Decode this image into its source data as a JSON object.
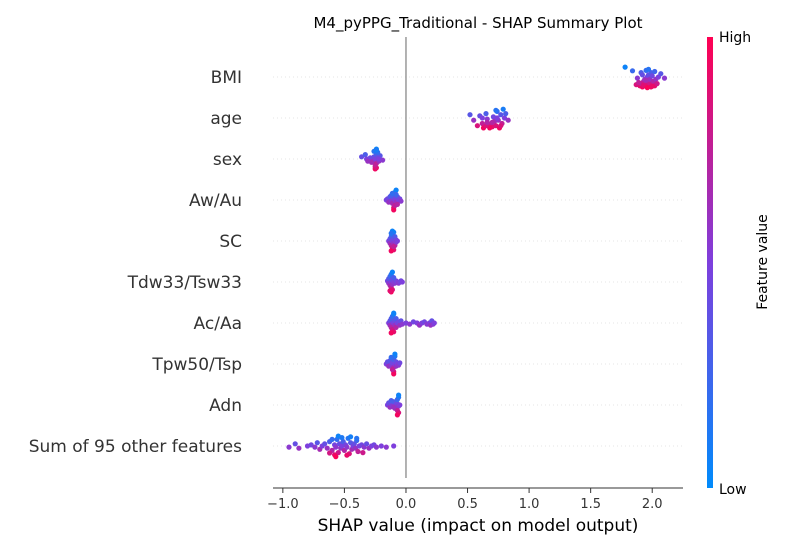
{
  "chart_data": {
    "type": "scatter",
    "subtype": "shap-beeswarm",
    "title": "M4_pyPPG_Traditional - SHAP Summary Plot",
    "xlabel": "SHAP value (impact on model output)",
    "xlim": [
      -1.08,
      2.25
    ],
    "xticks": [
      -1.0,
      -0.5,
      0.0,
      0.5,
      1.0,
      1.5,
      2.0
    ],
    "xtick_labels": [
      "−1.0",
      "−0.5",
      "0.0",
      "0.5",
      "1.0",
      "1.5",
      "2.0"
    ],
    "colorbar": {
      "label": "Feature value",
      "high_label": "High",
      "low_label": "Low",
      "high_color": "#ff0052",
      "low_color": "#008bfb"
    },
    "features": [
      {
        "name": "BMI",
        "points": [
          [
            1.78,
            0.05
          ],
          [
            1.84,
            0.22
          ],
          [
            1.87,
            0.85
          ],
          [
            1.88,
            0.55
          ],
          [
            1.9,
            0.9
          ],
          [
            1.91,
            0.3
          ],
          [
            1.92,
            0.95
          ],
          [
            1.93,
            0.7
          ],
          [
            1.94,
            0.6
          ],
          [
            1.94,
            0.9
          ],
          [
            1.95,
            0.2
          ],
          [
            1.95,
            0.75
          ],
          [
            1.96,
            0.85
          ],
          [
            1.96,
            0.5
          ],
          [
            1.97,
            0.9
          ],
          [
            1.97,
            0.4
          ],
          [
            1.98,
            0.8
          ],
          [
            1.98,
            0.6
          ],
          [
            1.99,
            0.95
          ],
          [
            1.99,
            0.3
          ],
          [
            2.0,
            0.85
          ],
          [
            2.0,
            0.45
          ],
          [
            2.01,
            0.7
          ],
          [
            2.02,
            0.9
          ],
          [
            2.03,
            0.6
          ],
          [
            2.05,
            0.5
          ],
          [
            2.07,
            0.35
          ],
          [
            2.1,
            0.55
          ],
          [
            1.91,
            0.8
          ],
          [
            1.93,
            0.88
          ],
          [
            1.96,
            0.98
          ],
          [
            2.0,
            0.92
          ],
          [
            1.92,
            0.4
          ],
          [
            1.97,
            0.15
          ],
          [
            2.02,
            0.25
          ],
          [
            1.95,
            0.65
          ],
          [
            1.89,
            0.75
          ],
          [
            2.04,
            0.8
          ]
        ]
      },
      {
        "name": "age",
        "points": [
          [
            0.52,
            0.35
          ],
          [
            0.55,
            0.6
          ],
          [
            0.58,
            0.85
          ],
          [
            0.6,
            0.4
          ],
          [
            0.62,
            0.75
          ],
          [
            0.63,
            0.95
          ],
          [
            0.65,
            0.3
          ],
          [
            0.66,
            0.55
          ],
          [
            0.68,
            0.8
          ],
          [
            0.7,
            0.9
          ],
          [
            0.71,
            0.45
          ],
          [
            0.72,
            0.65
          ],
          [
            0.73,
            0.85
          ],
          [
            0.74,
            0.2
          ],
          [
            0.75,
            0.6
          ],
          [
            0.76,
            0.95
          ],
          [
            0.77,
            0.35
          ],
          [
            0.78,
            0.75
          ],
          [
            0.79,
            0.1
          ],
          [
            0.8,
            0.5
          ],
          [
            0.81,
            0.3
          ],
          [
            0.83,
            0.6
          ],
          [
            0.68,
            0.95
          ],
          [
            0.74,
            0.5
          ],
          [
            0.7,
            0.7
          ],
          [
            0.65,
            0.85
          ],
          [
            0.62,
            0.5
          ],
          [
            0.77,
            0.85
          ],
          [
            0.73,
            0.15
          ],
          [
            0.66,
            0.7
          ]
        ]
      },
      {
        "name": "sex",
        "points": [
          [
            -0.36,
            0.4
          ],
          [
            -0.33,
            0.3
          ],
          [
            -0.32,
            0.5
          ],
          [
            -0.3,
            0.55
          ],
          [
            -0.29,
            0.45
          ],
          [
            -0.27,
            0.6
          ],
          [
            -0.26,
            0.4
          ],
          [
            -0.25,
            0.5
          ],
          [
            -0.24,
            0.3
          ],
          [
            -0.24,
            0.7
          ],
          [
            -0.23,
            0.45
          ],
          [
            -0.22,
            0.6
          ],
          [
            -0.21,
            0.35
          ],
          [
            -0.19,
            0.55
          ],
          [
            -0.25,
            0.95
          ],
          [
            -0.24,
            0.9
          ],
          [
            -0.25,
            0.85
          ],
          [
            -0.25,
            0.75
          ],
          [
            -0.24,
            0.05
          ],
          [
            -0.23,
            0.2
          ],
          [
            -0.28,
            0.65
          ],
          [
            -0.22,
            0.5
          ],
          [
            -0.31,
            0.6
          ],
          [
            -0.26,
            0.15
          ],
          [
            -0.24,
            0.1
          ]
        ]
      },
      {
        "name": "Aw/Au",
        "points": [
          [
            -0.16,
            0.5
          ],
          [
            -0.15,
            0.45
          ],
          [
            -0.14,
            0.6
          ],
          [
            -0.13,
            0.35
          ],
          [
            -0.12,
            0.55
          ],
          [
            -0.11,
            0.65
          ],
          [
            -0.1,
            0.4
          ],
          [
            -0.09,
            0.5
          ],
          [
            -0.08,
            0.6
          ],
          [
            -0.07,
            0.35
          ],
          [
            -0.06,
            0.5
          ],
          [
            -0.05,
            0.45
          ],
          [
            -0.04,
            0.55
          ],
          [
            -0.1,
            0.85
          ],
          [
            -0.1,
            0.95
          ],
          [
            -0.09,
            0.75
          ],
          [
            -0.09,
            0.15
          ],
          [
            -0.08,
            0.05
          ],
          [
            -0.08,
            0.25
          ],
          [
            -0.12,
            0.3
          ],
          [
            -0.07,
            0.7
          ],
          [
            -0.11,
            0.2
          ]
        ]
      },
      {
        "name": "SC",
        "points": [
          [
            -0.14,
            0.5
          ],
          [
            -0.13,
            0.4
          ],
          [
            -0.13,
            0.6
          ],
          [
            -0.12,
            0.3
          ],
          [
            -0.12,
            0.7
          ],
          [
            -0.11,
            0.5
          ],
          [
            -0.11,
            0.2
          ],
          [
            -0.11,
            0.8
          ],
          [
            -0.1,
            0.4
          ],
          [
            -0.1,
            0.6
          ],
          [
            -0.1,
            0.1
          ],
          [
            -0.1,
            0.9
          ],
          [
            -0.09,
            0.5
          ],
          [
            -0.09,
            0.3
          ],
          [
            -0.09,
            0.7
          ],
          [
            -0.08,
            0.45
          ],
          [
            -0.08,
            0.55
          ],
          [
            -0.07,
            0.5
          ],
          [
            -0.12,
            0.95
          ],
          [
            -0.11,
            0.05
          ],
          [
            -0.12,
            0.15
          ],
          [
            -0.1,
            0.75
          ]
        ]
      },
      {
        "name": "Tdw33/Tsw33",
        "points": [
          [
            -0.15,
            0.45
          ],
          [
            -0.14,
            0.55
          ],
          [
            -0.14,
            0.35
          ],
          [
            -0.13,
            0.65
          ],
          [
            -0.13,
            0.25
          ],
          [
            -0.12,
            0.5
          ],
          [
            -0.12,
            0.75
          ],
          [
            -0.12,
            0.15
          ],
          [
            -0.11,
            0.4
          ],
          [
            -0.11,
            0.6
          ],
          [
            -0.11,
            0.85
          ],
          [
            -0.11,
            0.05
          ],
          [
            -0.1,
            0.5
          ],
          [
            -0.09,
            0.55
          ],
          [
            -0.08,
            0.45
          ],
          [
            -0.07,
            0.5
          ],
          [
            -0.06,
            0.55
          ],
          [
            -0.05,
            0.5
          ],
          [
            -0.04,
            0.45
          ],
          [
            -0.03,
            0.5
          ],
          [
            -0.12,
            0.95
          ],
          [
            -0.13,
            0.9
          ],
          [
            -0.1,
            0.3
          ]
        ]
      },
      {
        "name": "Ac/Aa",
        "points": [
          [
            -0.14,
            0.5
          ],
          [
            -0.13,
            0.4
          ],
          [
            -0.13,
            0.6
          ],
          [
            -0.12,
            0.3
          ],
          [
            -0.12,
            0.7
          ],
          [
            -0.11,
            0.2
          ],
          [
            -0.11,
            0.8
          ],
          [
            -0.1,
            0.5
          ],
          [
            -0.1,
            0.1
          ],
          [
            -0.1,
            0.9
          ],
          [
            -0.09,
            0.4
          ],
          [
            -0.09,
            0.6
          ],
          [
            -0.08,
            0.3
          ],
          [
            -0.08,
            0.7
          ],
          [
            -0.07,
            0.5
          ],
          [
            -0.06,
            0.45
          ],
          [
            -0.05,
            0.6
          ],
          [
            -0.04,
            0.4
          ],
          [
            -0.03,
            0.55
          ],
          [
            0.0,
            0.5
          ],
          [
            0.03,
            0.55
          ],
          [
            0.06,
            0.45
          ],
          [
            0.09,
            0.5
          ],
          [
            0.11,
            0.6
          ],
          [
            0.13,
            0.5
          ],
          [
            0.15,
            0.45
          ],
          [
            0.17,
            0.55
          ],
          [
            0.19,
            0.5
          ],
          [
            0.2,
            0.6
          ],
          [
            0.21,
            0.4
          ],
          [
            0.22,
            0.55
          ],
          [
            0.23,
            0.5
          ],
          [
            -0.12,
            0.95
          ],
          [
            -0.1,
            0.05
          ]
        ]
      },
      {
        "name": "Tpw50/Tsp",
        "points": [
          [
            -0.16,
            0.5
          ],
          [
            -0.15,
            0.4
          ],
          [
            -0.14,
            0.6
          ],
          [
            -0.13,
            0.35
          ],
          [
            -0.12,
            0.55
          ],
          [
            -0.11,
            0.45
          ],
          [
            -0.1,
            0.65
          ],
          [
            -0.1,
            0.3
          ],
          [
            -0.09,
            0.5
          ],
          [
            -0.08,
            0.6
          ],
          [
            -0.08,
            0.4
          ],
          [
            -0.07,
            0.5
          ],
          [
            -0.06,
            0.55
          ],
          [
            -0.05,
            0.45
          ],
          [
            -0.1,
            0.85
          ],
          [
            -0.1,
            0.95
          ],
          [
            -0.09,
            0.15
          ],
          [
            -0.09,
            0.05
          ],
          [
            -0.11,
            0.75
          ],
          [
            -0.12,
            0.2
          ]
        ]
      },
      {
        "name": "Adn",
        "points": [
          [
            -0.15,
            0.5
          ],
          [
            -0.14,
            0.4
          ],
          [
            -0.13,
            0.6
          ],
          [
            -0.12,
            0.45
          ],
          [
            -0.11,
            0.55
          ],
          [
            -0.1,
            0.35
          ],
          [
            -0.09,
            0.65
          ],
          [
            -0.08,
            0.5
          ],
          [
            -0.07,
            0.45
          ],
          [
            -0.06,
            0.55
          ],
          [
            -0.05,
            0.5
          ],
          [
            -0.07,
            0.25
          ],
          [
            -0.07,
            0.75
          ],
          [
            -0.06,
            0.15
          ],
          [
            -0.06,
            0.85
          ],
          [
            -0.07,
            0.95
          ],
          [
            -0.06,
            0.05
          ],
          [
            -0.1,
            0.6
          ],
          [
            -0.12,
            0.3
          ]
        ]
      },
      {
        "name": "Sum of 95 other features",
        "points": [
          [
            -0.95,
            0.55
          ],
          [
            -0.9,
            0.4
          ],
          [
            -0.87,
            0.6
          ],
          [
            -0.8,
            0.5
          ],
          [
            -0.77,
            0.45
          ],
          [
            -0.74,
            0.55
          ],
          [
            -0.72,
            0.35
          ],
          [
            -0.7,
            0.65
          ],
          [
            -0.68,
            0.5
          ],
          [
            -0.66,
            0.4
          ],
          [
            -0.64,
            0.6
          ],
          [
            -0.62,
            0.3
          ],
          [
            -0.6,
            0.7
          ],
          [
            -0.58,
            0.45
          ],
          [
            -0.57,
            0.55
          ],
          [
            -0.56,
            0.2
          ],
          [
            -0.55,
            0.8
          ],
          [
            -0.54,
            0.4
          ],
          [
            -0.53,
            0.6
          ],
          [
            -0.52,
            0.5
          ],
          [
            -0.51,
            0.3
          ],
          [
            -0.5,
            0.7
          ],
          [
            -0.49,
            0.45
          ],
          [
            -0.48,
            0.55
          ],
          [
            -0.47,
            0.15
          ],
          [
            -0.46,
            0.85
          ],
          [
            -0.45,
            0.35
          ],
          [
            -0.44,
            0.65
          ],
          [
            -0.43,
            0.5
          ],
          [
            -0.42,
            0.4
          ],
          [
            -0.41,
            0.6
          ],
          [
            -0.4,
            0.25
          ],
          [
            -0.39,
            0.75
          ],
          [
            -0.38,
            0.5
          ],
          [
            -0.36,
            0.45
          ],
          [
            -0.34,
            0.55
          ],
          [
            -0.32,
            0.4
          ],
          [
            -0.3,
            0.6
          ],
          [
            -0.28,
            0.5
          ],
          [
            -0.26,
            0.45
          ],
          [
            -0.24,
            0.55
          ],
          [
            -0.2,
            0.5
          ],
          [
            -0.16,
            0.55
          ],
          [
            -0.1,
            0.5
          ],
          [
            -0.58,
            0.9
          ],
          [
            -0.57,
            0.98
          ],
          [
            -0.55,
            0.05
          ],
          [
            -0.52,
            0.12
          ],
          [
            -0.48,
            0.92
          ],
          [
            -0.45,
            0.08
          ],
          [
            -0.62,
            0.82
          ],
          [
            -0.6,
            0.2
          ],
          [
            -0.35,
            0.8
          ],
          [
            -0.4,
            0.15
          ]
        ]
      }
    ]
  }
}
